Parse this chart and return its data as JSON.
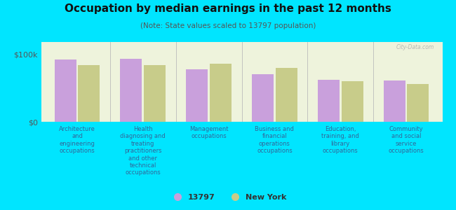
{
  "title": "Occupation by median earnings in the past 12 months",
  "subtitle": "(Note: State values scaled to 13797 population)",
  "categories": [
    "Architecture\nand\nengineering\noccupations",
    "Health\ndiagnosing and\ntreating\npractitioners\nand other\ntechnical\noccupations",
    "Management\noccupations",
    "Business and\nfinancial\noperations\noccupations",
    "Education,\ntraining, and\nlibrary\noccupations",
    "Community\nand social\nservice\noccupations"
  ],
  "values_13797": [
    92000,
    93000,
    78000,
    70000,
    62000,
    61000
  ],
  "values_ny": [
    84000,
    84000,
    86000,
    80000,
    60000,
    56000
  ],
  "bar_color_13797": "#c9a0dc",
  "bar_color_ny": "#c8cc8a",
  "background_color": "#00e5ff",
  "plot_bg_color": "#eef3dc",
  "ymax": 100000,
  "ytick_labels": [
    "$0",
    "$100k"
  ],
  "legend_label_13797": "13797",
  "legend_label_ny": "New York",
  "watermark": "City-Data.com",
  "label_color": "#336699",
  "title_color": "#111111",
  "subtitle_color": "#555555"
}
